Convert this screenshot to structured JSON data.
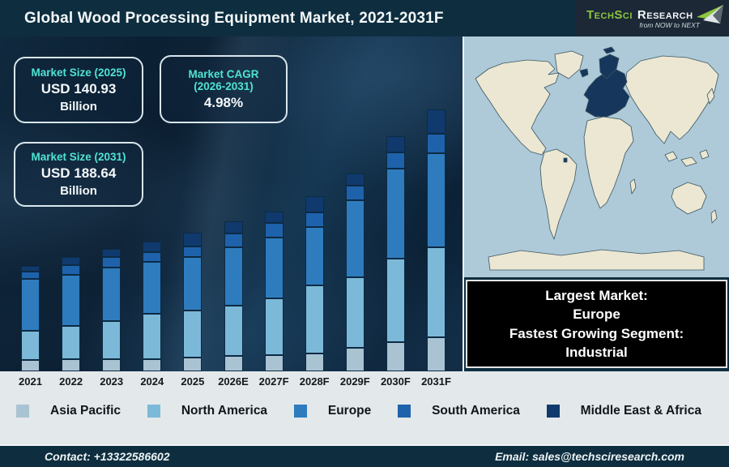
{
  "header": {
    "title": "Global Wood Processing Equipment Market, 2021-2031F",
    "logo": {
      "brand_primary": "TechSci",
      "brand_secondary": "Research",
      "tagline": "from NOW to NEXT"
    }
  },
  "stats": {
    "size_2025": {
      "label": "Market Size (2025)",
      "value": "USD 140.93",
      "unit": "Billion"
    },
    "cagr": {
      "label_line1": "Market CAGR",
      "label_line2": "(2026-2031)",
      "value": "4.98%"
    },
    "size_2031": {
      "label": "Market Size (2031)",
      "value": "USD 188.64",
      "unit": "Billion"
    }
  },
  "chart_data": {
    "type": "bar",
    "subtype": "stacked",
    "stack_order": "bottom-to-top",
    "value_axis": "none shown; values are relative visual heights in px estimated from the image",
    "categories": [
      "2021",
      "2022",
      "2023",
      "2024",
      "2025",
      "2026E",
      "2027F",
      "2028F",
      "2029F",
      "2030F",
      "2031F"
    ],
    "series": [
      {
        "name": "Asia Pacific",
        "color": "#a9c3d2",
        "values": [
          14,
          15,
          15,
          15,
          17,
          19,
          20,
          22,
          29,
          36,
          42
        ]
      },
      {
        "name": "North America",
        "color": "#7cb9d8",
        "values": [
          36,
          41,
          47,
          56,
          58,
          62,
          70,
          84,
          87,
          103,
          111
        ]
      },
      {
        "name": "Europe",
        "color": "#2e7cbe",
        "values": [
          64,
          63,
          66,
          64,
          66,
          72,
          75,
          72,
          95,
          111,
          116
        ]
      },
      {
        "name": "South America",
        "color": "#1e62ab",
        "values": [
          9,
          12,
          13,
          12,
          13,
          17,
          18,
          18,
          18,
          20,
          24
        ]
      },
      {
        "name": "Middle East & Africa",
        "color": "#103a6d",
        "values": [
          7,
          10,
          10,
          13,
          17,
          15,
          14,
          20,
          15,
          20,
          30
        ]
      }
    ],
    "totals_relative": [
      130,
      141,
      151,
      160,
      171,
      185,
      197,
      216,
      244,
      290,
      323
    ],
    "legend_position": "bottom",
    "grid": false
  },
  "map": {
    "highlighted_region": "Europe",
    "ocean_color": "#aec9d8",
    "land_color": "#ece7d2",
    "outline_color": "#3a5561",
    "highlight_color": "#16365c"
  },
  "callout": {
    "lines": [
      "Largest Market:",
      "Europe",
      "Fastest Growing Segment:",
      "Industrial"
    ]
  },
  "legend": {
    "items": [
      {
        "label": "Asia Pacific",
        "color": "#a9c3d2"
      },
      {
        "label": "North America",
        "color": "#7cb9d8"
      },
      {
        "label": "Europe",
        "color": "#2e7cbe"
      },
      {
        "label": "South America",
        "color": "#1e62ab"
      },
      {
        "label": "Middle East & Africa",
        "color": "#103a6d"
      }
    ]
  },
  "footer": {
    "contact": "Contact: +13322586602",
    "email": "Email: sales@techsciresearch.com"
  }
}
